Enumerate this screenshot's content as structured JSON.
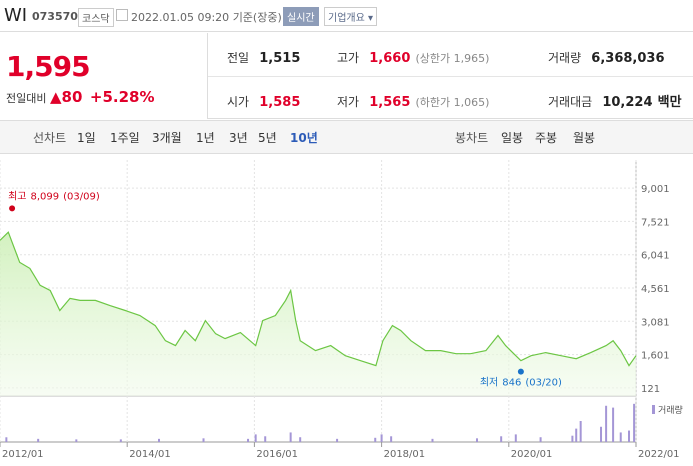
{
  "header": {
    "name": "WI",
    "code": "073570",
    "market": "코스닥",
    "datetime": "2022.01.05 09:20",
    "basis": "기준(장중)",
    "realtime": "실시간",
    "company_info": "기업개요"
  },
  "quote": {
    "price": "1,595",
    "change_label": "전일대비",
    "change": "80",
    "change_rate": "+5.28%"
  },
  "stats": [
    {
      "label": "전일",
      "value": "1,515"
    },
    {
      "label": "고가",
      "value": "1,660",
      "note": "(상한가 1,965)"
    },
    {
      "label": "거래량",
      "value": "6,368,036"
    },
    {
      "label": "시가",
      "value": "1,585"
    },
    {
      "label": "저가",
      "value": "1,565",
      "note": "(하한가 1,065)"
    },
    {
      "label": "거래대금",
      "value": "10,224",
      "unit": "백만"
    }
  ],
  "tabs": {
    "line_label": "선차트",
    "periods": [
      "1일",
      "1주일",
      "3개월",
      "1년",
      "3년",
      "5년",
      "10년"
    ],
    "candle_label": "봉차트",
    "candles": [
      "일봉",
      "주봉",
      "월봉"
    ]
  },
  "chart_data": {
    "type": "area",
    "color": "#6cc644",
    "x": [
      2012.0,
      2012.13,
      2012.31,
      2012.47,
      2012.63,
      2012.79,
      2012.94,
      2013.1,
      2013.26,
      2013.5,
      2013.73,
      2013.97,
      2014.2,
      2014.44,
      2014.6,
      2014.76,
      2014.91,
      2015.07,
      2015.23,
      2015.39,
      2015.54,
      2015.78,
      2016.02,
      2016.13,
      2016.33,
      2016.49,
      2016.57,
      2016.65,
      2016.72,
      2016.96,
      2017.2,
      2017.43,
      2017.67,
      2017.91,
      2018.02,
      2018.17,
      2018.3,
      2018.46,
      2018.69,
      2018.93,
      2019.17,
      2019.4,
      2019.64,
      2019.83,
      2019.95,
      2020.11,
      2020.19,
      2020.35,
      2020.58,
      2020.82,
      2021.06,
      2021.29,
      2021.53,
      2021.64,
      2021.76,
      2021.89,
      2022.0
    ],
    "values": [
      6680,
      7040,
      5700,
      5430,
      4680,
      4450,
      3560,
      4100,
      4010,
      4010,
      3780,
      3560,
      3340,
      2890,
      2220,
      2000,
      2670,
      2220,
      3110,
      2530,
      2310,
      2580,
      2000,
      3110,
      3340,
      4010,
      4450,
      3110,
      2220,
      1780,
      2000,
      1550,
      1330,
      1110,
      2220,
      2890,
      2670,
      2220,
      1780,
      1780,
      1640,
      1640,
      1780,
      2450,
      2000,
      1550,
      1330,
      1550,
      1690,
      1550,
      1420,
      1690,
      2000,
      2220,
      1780,
      1110,
      1550
    ],
    "xlim": [
      2012,
      2022
    ],
    "xticks": [
      {
        "value": 2012,
        "label": "2012/01"
      },
      {
        "value": 2014,
        "label": "2014/01"
      },
      {
        "value": 2016,
        "label": "2016/01"
      },
      {
        "value": 2018,
        "label": "2018/01"
      },
      {
        "value": 2020,
        "label": "2020/01"
      },
      {
        "value": 2022,
        "label": "2022/01"
      }
    ],
    "ylim": [
      -240,
      10250
    ],
    "yticks": [
      121,
      {
        "value": 1601,
        "label": "1,601"
      },
      {
        "value": 3081,
        "label": "3,081"
      },
      {
        "value": 4561,
        "label": "4,561"
      },
      {
        "value": 6041,
        "label": "6,041"
      },
      {
        "value": 7521,
        "label": "7,521"
      },
      {
        "value": 9001,
        "label": "9,001"
      }
    ],
    "grid": true,
    "annotations": [
      {
        "label": "최고",
        "value": 8099,
        "value_label": "8,099",
        "date": "(03/09)",
        "x": 2012.19,
        "color": "#d0021b"
      },
      {
        "label": "최저",
        "value": 846,
        "value_label": "846",
        "date": "(03/20)",
        "x": 2020.19,
        "color": "#1a73c9"
      }
    ],
    "volume": {
      "name": "거래량",
      "color": "#a496d6",
      "ylim": [
        0,
        8000000
      ],
      "x": [
        2012.1,
        2012.6,
        2013.2,
        2013.9,
        2014.5,
        2015.2,
        2015.9,
        2016.02,
        2016.17,
        2016.57,
        2016.72,
        2017.3,
        2017.9,
        2018.0,
        2018.15,
        2018.8,
        2019.5,
        2019.88,
        2020.11,
        2020.5,
        2021.0,
        2021.06,
        2021.13,
        2021.45,
        2021.53,
        2021.64,
        2021.76,
        2021.89,
        2021.97
      ],
      "values": [
        900000,
        600000,
        500000,
        500000,
        600000,
        700000,
        600000,
        1450000,
        1090000,
        1820000,
        910000,
        600000,
        800000,
        1450000,
        1090000,
        600000,
        700000,
        1090000,
        1450000,
        910000,
        1200000,
        2550000,
        4000000,
        2900000,
        6900000,
        6550000,
        1820000,
        2180000,
        7270000
      ]
    }
  }
}
